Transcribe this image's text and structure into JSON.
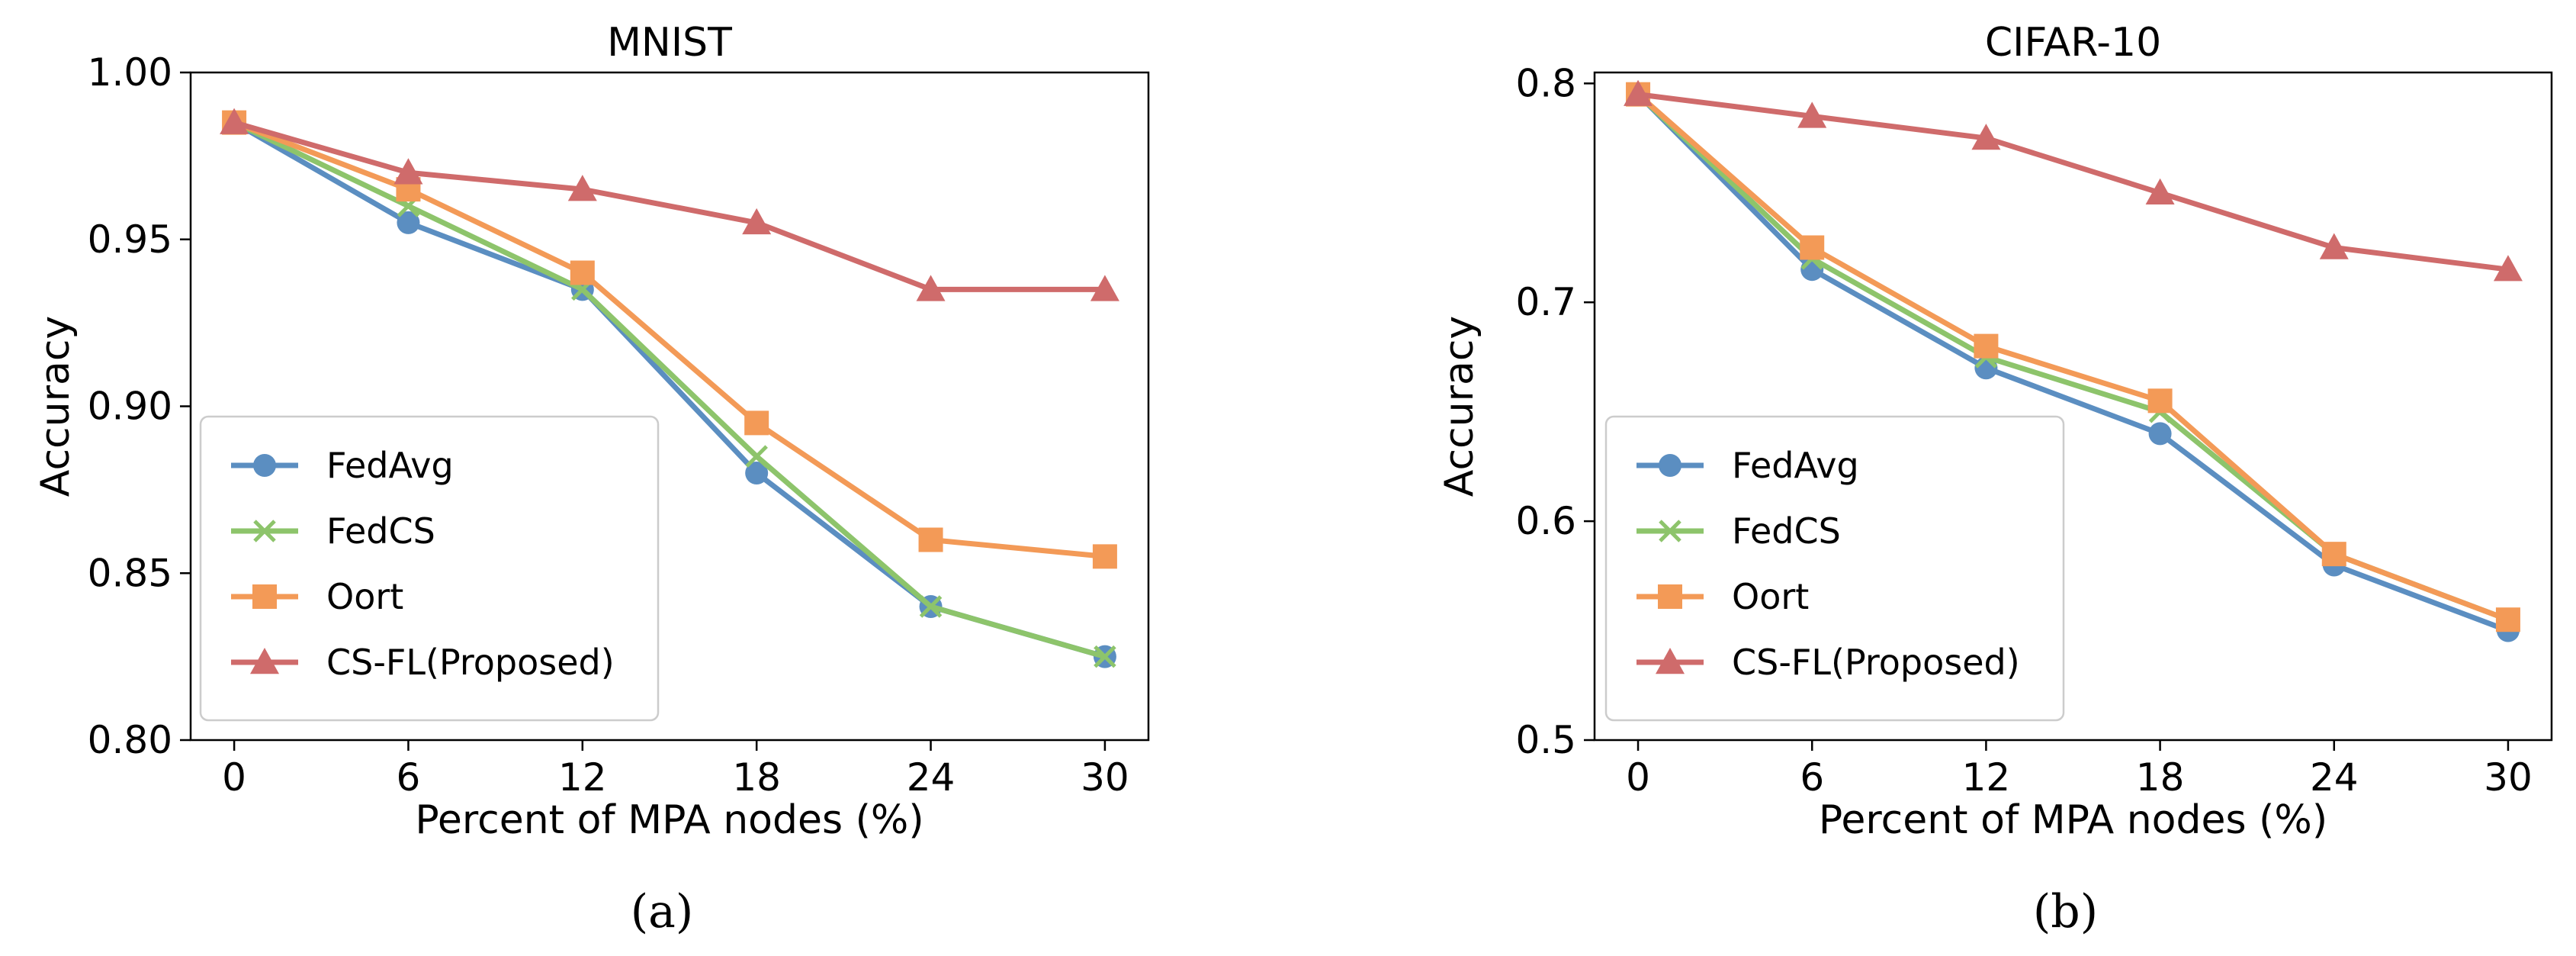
{
  "chart_data": [
    {
      "type": "line",
      "title": "MNIST",
      "caption": "(a)",
      "xlabel": "Percent of MPA nodes (%)",
      "ylabel": "Accuracy",
      "x": [
        0,
        6,
        12,
        18,
        24,
        30
      ],
      "xticks": [
        "0",
        "6",
        "12",
        "18",
        "24",
        "30"
      ],
      "ylim": [
        0.8,
        1.0
      ],
      "yticks": [
        "0.80",
        "0.85",
        "0.90",
        "0.95",
        "1.00"
      ],
      "legend_position": "lower-left",
      "series": [
        {
          "name": "FedAvg",
          "color": "#5b8ec1",
          "marker": "circle",
          "values": [
            0.985,
            0.955,
            0.935,
            0.88,
            0.84,
            0.825
          ]
        },
        {
          "name": "FedCS",
          "color": "#8dc46b",
          "marker": "x",
          "values": [
            0.985,
            0.96,
            0.935,
            0.885,
            0.84,
            0.825
          ]
        },
        {
          "name": "Oort",
          "color": "#f39a57",
          "marker": "square",
          "values": [
            0.985,
            0.965,
            0.94,
            0.895,
            0.86,
            0.855
          ]
        },
        {
          "name": "CS-FL(Proposed)",
          "color": "#cf6b6b",
          "marker": "triangle",
          "values": [
            0.985,
            0.97,
            0.965,
            0.955,
            0.935,
            0.935
          ]
        }
      ]
    },
    {
      "type": "line",
      "title": "CIFAR-10",
      "caption": "(b)",
      "xlabel": "Percent of MPA nodes (%)",
      "ylabel": "Accuracy",
      "x": [
        0,
        6,
        12,
        18,
        24,
        30
      ],
      "xticks": [
        "0",
        "6",
        "12",
        "18",
        "24",
        "30"
      ],
      "ylim": [
        0.5,
        0.805
      ],
      "yticks": [
        "0.5",
        "0.6",
        "0.7",
        "0.8"
      ],
      "legend_position": "lower-left",
      "series": [
        {
          "name": "FedAvg",
          "color": "#5b8ec1",
          "marker": "circle",
          "values": [
            0.795,
            0.715,
            0.67,
            0.64,
            0.58,
            0.55
          ]
        },
        {
          "name": "FedCS",
          "color": "#8dc46b",
          "marker": "x",
          "values": [
            0.795,
            0.72,
            0.675,
            0.65,
            0.585,
            0.555
          ]
        },
        {
          "name": "Oort",
          "color": "#f39a57",
          "marker": "square",
          "values": [
            0.795,
            0.725,
            0.68,
            0.655,
            0.585,
            0.555
          ]
        },
        {
          "name": "CS-FL(Proposed)",
          "color": "#cf6b6b",
          "marker": "triangle",
          "values": [
            0.795,
            0.785,
            0.775,
            0.75,
            0.725,
            0.715
          ]
        }
      ]
    }
  ]
}
